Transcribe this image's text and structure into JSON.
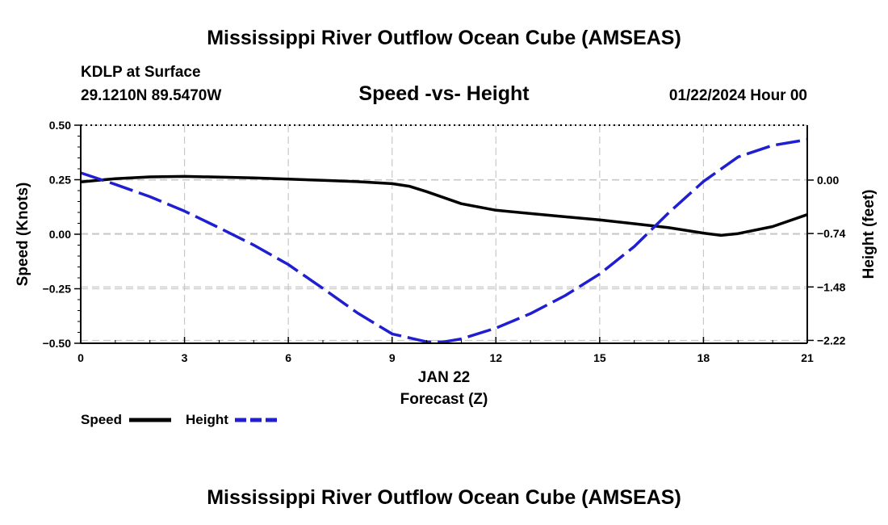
{
  "page_title": "Mississippi River Outflow Ocean Cube (AMSEAS)",
  "footer_title": "Mississippi River Outflow Ocean Cube (AMSEAS)",
  "station": "KDLP at Surface",
  "coordinates": "29.1210N  89.5470W",
  "datetime": "01/22/2024 Hour 00",
  "colors": {
    "speed": "#000000",
    "height": "#1f1fd1"
  },
  "chart_data": {
    "type": "line",
    "title": "Speed -vs- Height",
    "xlabel": "Forecast (Z)",
    "date_label": "JAN 22",
    "x_ticks": [
      "0",
      "3",
      "6",
      "9",
      "12",
      "15",
      "18",
      "21"
    ],
    "xlim": [
      0,
      21
    ],
    "y_left": {
      "label": "Speed (Knots)",
      "range": [
        -0.5,
        0.5
      ],
      "ticks": [
        "0.50",
        "0.25",
        "0.00",
        "−0.25",
        "−0.50"
      ],
      "tick_values": [
        0.5,
        0.25,
        0.0,
        -0.25,
        -0.5
      ]
    },
    "y_right": {
      "label": "Height (feet)",
      "range": [
        -2.26,
        0.76
      ],
      "ticks": [
        "0.00",
        "−0.74",
        "−1.48",
        "−2.22"
      ],
      "tick_values": [
        0.0,
        -0.74,
        -1.48,
        -2.22
      ]
    },
    "series": [
      {
        "name": "Speed",
        "axis": "left",
        "style": "solid",
        "x": [
          0,
          1,
          2,
          3,
          4,
          5,
          6,
          7,
          8,
          9,
          9.5,
          10,
          11,
          12,
          13,
          14,
          15,
          16,
          17,
          18,
          18.5,
          19,
          20,
          21
        ],
        "values": [
          0.24,
          0.255,
          0.263,
          0.265,
          0.262,
          0.258,
          0.253,
          0.247,
          0.241,
          0.232,
          0.22,
          0.195,
          0.14,
          0.11,
          0.095,
          0.08,
          0.066,
          0.048,
          0.03,
          0.005,
          -0.005,
          0.003,
          0.035,
          0.09
        ]
      },
      {
        "name": "Height",
        "axis": "right",
        "style": "dashed",
        "x": [
          0,
          1,
          2,
          3,
          4,
          5,
          6,
          7,
          8,
          9,
          10,
          10.5,
          11,
          12,
          13,
          14,
          15,
          16,
          17,
          18,
          19,
          20,
          21
        ],
        "values": [
          0.1,
          -0.06,
          -0.23,
          -0.43,
          -0.66,
          -0.9,
          -1.17,
          -1.5,
          -1.84,
          -2.13,
          -2.24,
          -2.24,
          -2.2,
          -2.05,
          -1.85,
          -1.6,
          -1.3,
          -0.92,
          -0.45,
          -0.02,
          0.32,
          0.48,
          0.56
        ]
      }
    ],
    "legend": [
      {
        "label": "Speed"
      },
      {
        "label": "Height"
      }
    ]
  }
}
